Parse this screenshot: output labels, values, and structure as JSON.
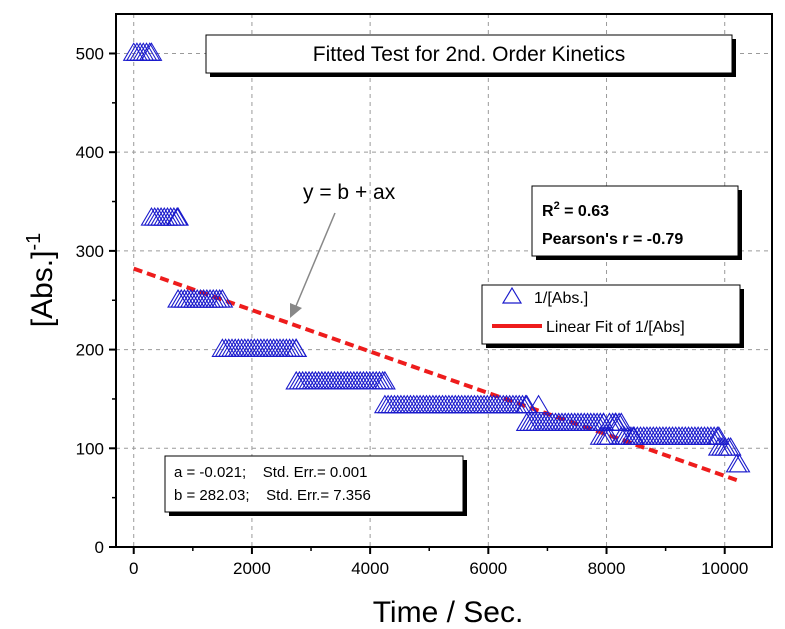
{
  "chart_data": {
    "type": "scatter",
    "title": "Fitted Test for 2nd. Order Kinetics",
    "xlabel": "Time / Sec.",
    "ylabel": "[Abs.]",
    "ylabel_superscript": "-1",
    "xlim": [
      -300,
      10800
    ],
    "ylim": [
      0,
      540
    ],
    "xticks": [
      0,
      2000,
      4000,
      6000,
      8000,
      10000
    ],
    "yticks": [
      0,
      100,
      200,
      300,
      400,
      500
    ],
    "grid": true,
    "legend": {
      "position": "right",
      "entries": [
        "1/[Abs.]",
        "Linear Fit of 1/[Abs]"
      ]
    },
    "series": [
      {
        "name": "1/[Abs.]",
        "marker": "open-triangle",
        "color": "#1a1acc",
        "runs": [
          {
            "x_start": 0,
            "x_end": 300,
            "y": 500
          },
          {
            "x_start": 300,
            "x_end": 750,
            "y": 333
          },
          {
            "x_start": 750,
            "x_end": 1500,
            "y": 250
          },
          {
            "x_start": 1500,
            "x_end": 2750,
            "y": 200
          },
          {
            "x_start": 2750,
            "x_end": 4250,
            "y": 167
          },
          {
            "x_start": 4250,
            "x_end": 6650,
            "y": 143
          },
          {
            "x_start": 6650,
            "x_end": 7950,
            "y": 125
          },
          {
            "x_start": 8050,
            "x_end": 8250,
            "y": 125
          },
          {
            "x_start": 7900,
            "x_end": 8050,
            "y": 111
          },
          {
            "x_start": 8250,
            "x_end": 9900,
            "y": 111
          },
          {
            "x_start": 9900,
            "x_end": 10100,
            "y": 100
          },
          {
            "x_start": 10200,
            "x_end": 10250,
            "y": 83
          }
        ],
        "extra_points": [
          {
            "x": 6850,
            "y": 143
          },
          {
            "x": 8150,
            "y": 125
          },
          {
            "x": 8450,
            "y": 111
          }
        ]
      },
      {
        "name": "Linear Fit of 1/[Abs]",
        "type": "line",
        "style": "dashed",
        "color": "#ee1c1c",
        "intercept": 282.03,
        "slope": -0.021,
        "x_range": [
          0,
          10250
        ]
      }
    ],
    "annotations": {
      "equation": "y = b + ax",
      "r2_label": "R",
      "r2_sup": "2",
      "r2_value": " = 0.63",
      "pearson": "Pearson's r = -0.79",
      "fit_line1": "a = -0.021;    Std. Err.= 0.001",
      "fit_line2": "b = 282.03;    Std. Err.= 7.356"
    }
  }
}
